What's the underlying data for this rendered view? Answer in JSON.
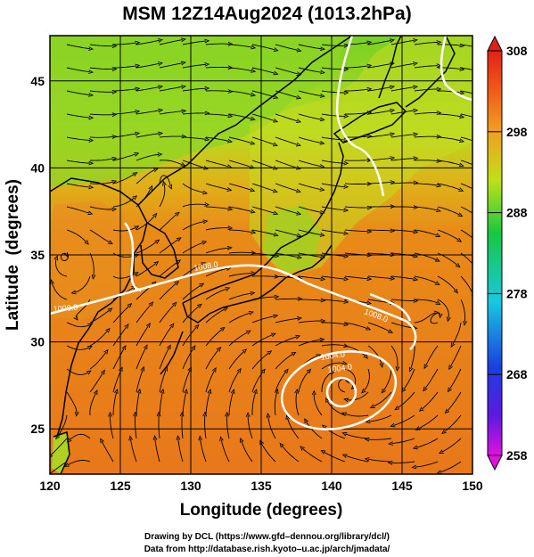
{
  "title": "MSM 12Z14Aug2024 (1013.2hPa)",
  "axes": {
    "xlabel": "Longitude (degrees)",
    "ylabel": "Latitude  (degrees)",
    "x_ticks": [
      "120",
      "125",
      "130",
      "135",
      "140",
      "145",
      "150"
    ],
    "y_ticks": [
      "25",
      "30",
      "35",
      "40",
      "45"
    ],
    "x_range": [
      120,
      150
    ],
    "y_range": [
      22.4,
      47.6
    ]
  },
  "colorbar": {
    "ticks": [
      "308",
      "298",
      "288",
      "278",
      "268",
      "258"
    ],
    "range": [
      258,
      308
    ],
    "units": ""
  },
  "contours": {
    "labels": [
      "1008.0",
      "1008.0",
      "1004.0",
      "1004.0",
      "1008.0"
    ]
  },
  "features": {
    "typhoon_center": {
      "lon": 140.9,
      "lat": 27.6
    },
    "secondary_low": {
      "lon": 147.6,
      "lat": 31.6
    }
  },
  "footer": {
    "line1": "Drawing by DCL (https://www.gfd–dennou.org/library/dcl/)",
    "line2": "Data from http://database.rish.kyoto–u.ac.jp/arch/jmadata/"
  },
  "colors": {
    "warm": "#e8781a",
    "mid": "#c8d81a",
    "cool": "#58c81a",
    "isobar": "#ffffff",
    "streamline": "#000000"
  }
}
